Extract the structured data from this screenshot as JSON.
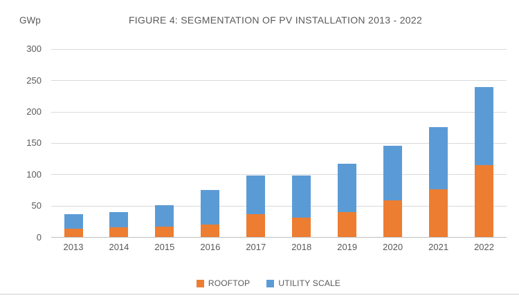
{
  "header": {
    "unit_label": "GWp",
    "title": "FIGURE 4: SEGMENTATION OF PV INSTALLATION 2013 - 2022"
  },
  "chart_data": {
    "type": "bar",
    "stacked": true,
    "title": "FIGURE 4: SEGMENTATION OF PV INSTALLATION 2013 - 2022",
    "unit": "GWp",
    "categories": [
      "2013",
      "2014",
      "2015",
      "2016",
      "2017",
      "2018",
      "2019",
      "2020",
      "2021",
      "2022"
    ],
    "series": [
      {
        "name": "ROOFTOP",
        "color": "#ED7D31",
        "values": [
          14,
          16,
          17,
          20,
          37,
          31,
          40,
          59,
          77,
          115
        ]
      },
      {
        "name": "UTILITY SCALE",
        "color": "#5B9BD5",
        "values": [
          23,
          24,
          34,
          56,
          62,
          68,
          77,
          87,
          99,
          125
        ]
      }
    ],
    "totals": [
      37,
      40,
      51,
      76,
      99,
      99,
      117,
      146,
      176,
      240
    ],
    "xlabel": "",
    "ylabel": "GWp",
    "ylim": [
      0,
      300
    ],
    "yticks": [
      0,
      50,
      100,
      150,
      200,
      250,
      300
    ],
    "grid": true,
    "legend_position": "bottom"
  },
  "legend": {
    "items": [
      {
        "label": "ROOFTOP",
        "color": "#ED7D31"
      },
      {
        "label": "UTILITY SCALE",
        "color": "#5B9BD5"
      }
    ]
  },
  "colors": {
    "rooftop": "#ED7D31",
    "utility_scale": "#5B9BD5",
    "gridline": "#D9D9D9",
    "axis_line": "#BFBFBF",
    "text": "#595959"
  }
}
